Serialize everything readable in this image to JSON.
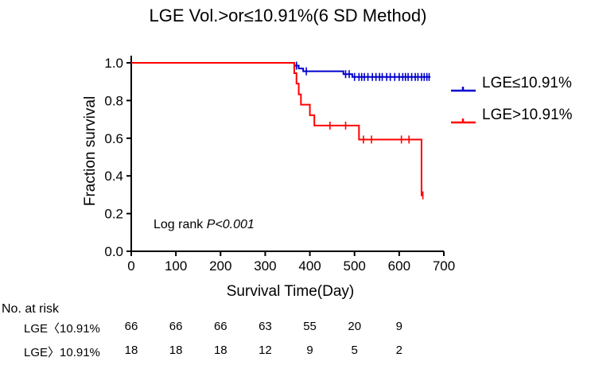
{
  "chart_data": {
    "type": "line",
    "title": "LGE Vol.>or≤10.91%(6 SD Method)",
    "xlabel": "Survival Time(Day)",
    "ylabel": "Fraction survival",
    "xlim": [
      0,
      700
    ],
    "ylim": [
      0,
      1.0
    ],
    "xticks": [
      0,
      100,
      200,
      300,
      400,
      500,
      600,
      700
    ],
    "yticks": [
      "0.0",
      "0.2",
      "0.4",
      "0.6",
      "0.8",
      "1.0"
    ],
    "grid": false,
    "legend_position": "right",
    "annotation": {
      "prefix": "Log rank ",
      "italic": "P<0.001"
    },
    "series": [
      {
        "name": "LGE≤10.91%",
        "color": "#0000cc",
        "steps": [
          [
            0,
            1.0
          ],
          [
            365,
            0.985
          ],
          [
            375,
            0.97
          ],
          [
            385,
            0.955
          ],
          [
            475,
            0.94
          ],
          [
            495,
            0.925
          ]
        ],
        "end_x": 670,
        "censors": [
          [
            370,
            0.985
          ],
          [
            392,
            0.955
          ],
          [
            480,
            0.94
          ],
          [
            488,
            0.94
          ],
          [
            500,
            0.925
          ],
          [
            510,
            0.925
          ],
          [
            516,
            0.925
          ],
          [
            522,
            0.925
          ],
          [
            530,
            0.925
          ],
          [
            540,
            0.925
          ],
          [
            548,
            0.925
          ],
          [
            556,
            0.925
          ],
          [
            562,
            0.925
          ],
          [
            572,
            0.925
          ],
          [
            580,
            0.925
          ],
          [
            590,
            0.925
          ],
          [
            600,
            0.925
          ],
          [
            608,
            0.925
          ],
          [
            614,
            0.925
          ],
          [
            620,
            0.925
          ],
          [
            628,
            0.925
          ],
          [
            636,
            0.925
          ],
          [
            642,
            0.925
          ],
          [
            650,
            0.925
          ],
          [
            656,
            0.925
          ],
          [
            662,
            0.925
          ],
          [
            667,
            0.925
          ]
        ]
      },
      {
        "name": "LGE>10.91%",
        "color": "#ff0000",
        "steps": [
          [
            0,
            1.0
          ],
          [
            365,
            0.945
          ],
          [
            370,
            0.89
          ],
          [
            375,
            0.833
          ],
          [
            380,
            0.778
          ],
          [
            400,
            0.722
          ],
          [
            410,
            0.667
          ],
          [
            510,
            0.593
          ],
          [
            650,
            0.297
          ]
        ],
        "end_x": 653,
        "censors": [
          [
            445,
            0.667
          ],
          [
            480,
            0.667
          ],
          [
            520,
            0.593
          ],
          [
            538,
            0.593
          ],
          [
            605,
            0.593
          ],
          [
            622,
            0.593
          ],
          [
            653,
            0.297
          ]
        ]
      }
    ]
  },
  "risk_table": {
    "heading": "No. at risk",
    "times": [
      0,
      100,
      200,
      300,
      400,
      500,
      600
    ],
    "rows": [
      {
        "label": "LGE〈10.91%",
        "values": [
          "66",
          "66",
          "66",
          "63",
          "55",
          "20",
          "9"
        ]
      },
      {
        "label": "LGE〉10.91%",
        "values": [
          "18",
          "18",
          "18",
          "12",
          "9",
          "5",
          "2"
        ]
      }
    ]
  }
}
